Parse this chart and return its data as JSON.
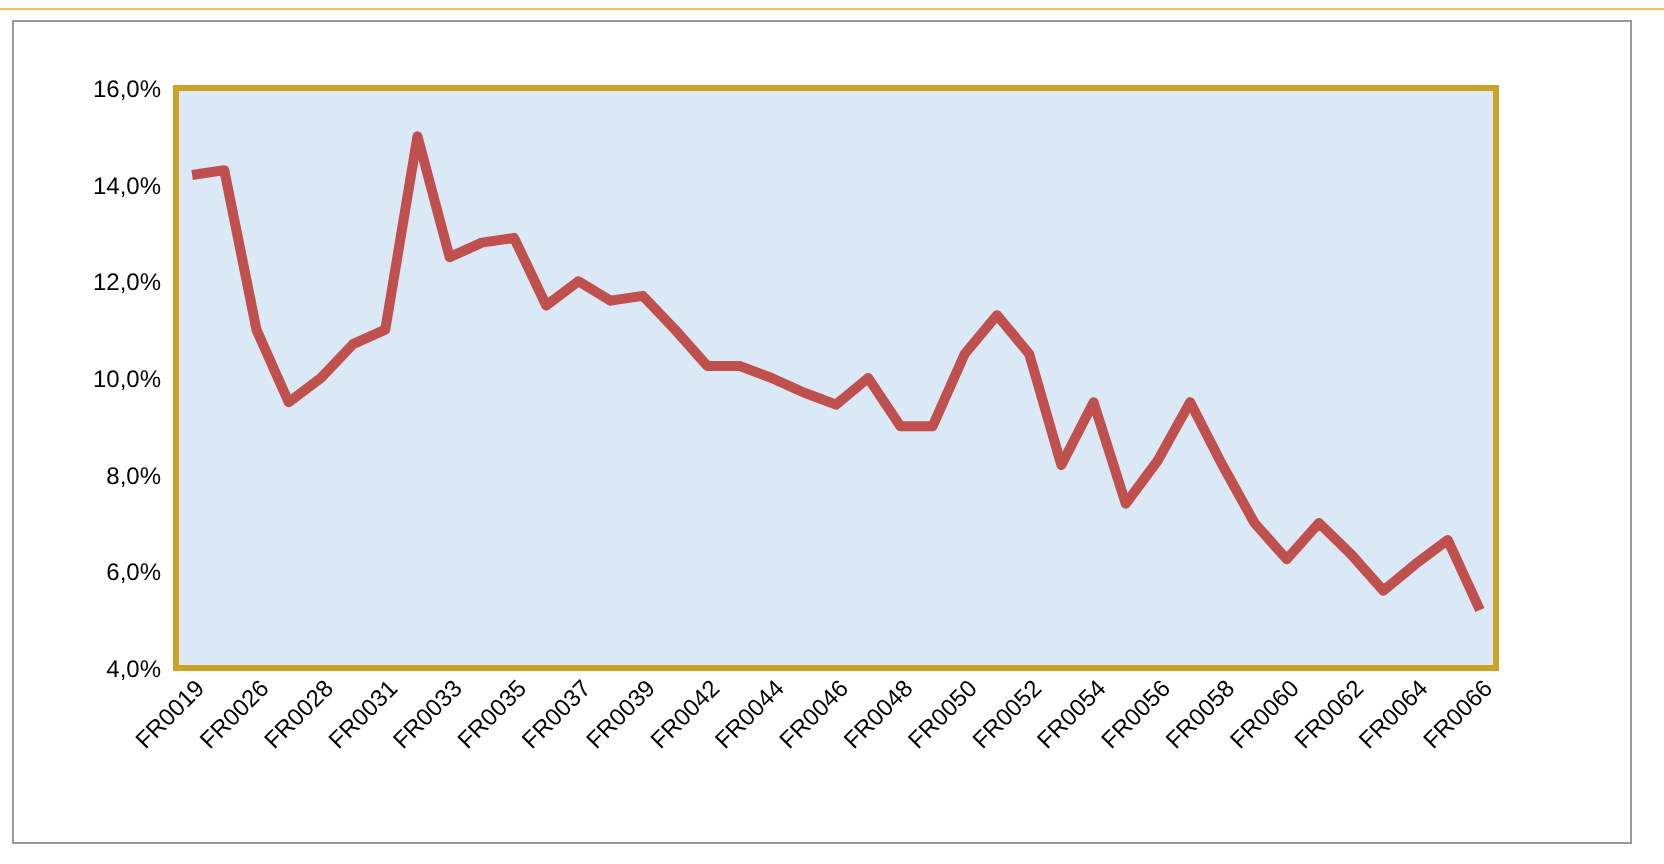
{
  "chart_data": {
    "type": "line",
    "categories": [
      "FR0019",
      null,
      "FR0026",
      null,
      "FR0028",
      null,
      "FR0031",
      null,
      "FR0033",
      null,
      "FR0035",
      null,
      "FR0037",
      null,
      "FR0039",
      null,
      "FR0042",
      null,
      "FR0044",
      null,
      "FR0046",
      null,
      "FR0048",
      null,
      "FR0050",
      null,
      "FR0052",
      null,
      "FR0054",
      null,
      "FR0056",
      null,
      "FR0058",
      null,
      "FR0060",
      null,
      "FR0062",
      null,
      "FR0064",
      null,
      "FR0066"
    ],
    "series": [
      {
        "color": "#c0504d",
        "values": [
          14.2,
          14.3,
          11.0,
          9.5,
          10.0,
          10.7,
          11.0,
          15.0,
          12.5,
          12.8,
          12.9,
          11.5,
          12.0,
          11.6,
          11.7,
          11.0,
          10.25,
          10.25,
          10.0,
          9.7,
          9.45,
          10.0,
          9.0,
          9.0,
          10.5,
          11.3,
          10.5,
          8.2,
          9.5,
          7.4,
          8.3,
          9.5,
          8.2,
          7.0,
          6.25,
          7.0,
          6.35,
          5.6,
          6.15,
          6.65,
          5.2
        ]
      }
    ],
    "ylim": [
      4,
      16
    ],
    "yticks": [
      {
        "value": 4,
        "label": "4,0%"
      },
      {
        "value": 6,
        "label": "6,0%"
      },
      {
        "value": 8,
        "label": "8,0%"
      },
      {
        "value": 10,
        "label": "10,0%"
      },
      {
        "value": 12,
        "label": "12,0%"
      },
      {
        "value": 14,
        "label": "14,0%"
      },
      {
        "value": 16,
        "label": "16,0%"
      }
    ],
    "grid": false,
    "marker": "none",
    "line_style": "solid"
  }
}
